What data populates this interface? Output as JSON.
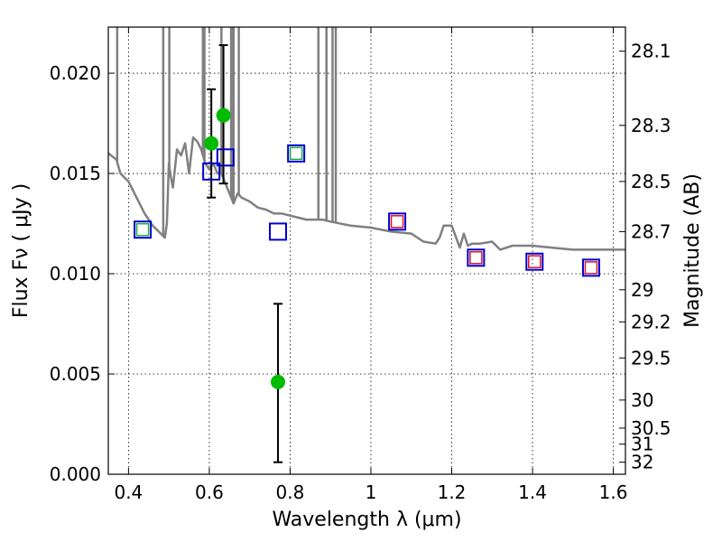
{
  "chart_data": {
    "type": "scatter",
    "xlabel": "Wavelength  λ (μm)",
    "ylabel": "Flux  Fν  ( μJy )",
    "y2label": "Magnitude (AB)",
    "xlim": [
      0.35,
      1.63
    ],
    "ylim": [
      0.0,
      0.0223
    ],
    "grid": true,
    "x_ticks": [
      0.4,
      0.6,
      0.8,
      1.0,
      1.2,
      1.4,
      1.6
    ],
    "x_tick_labels": [
      "0.4",
      "0.6",
      "0.8",
      "1",
      "1.2",
      "1.4",
      "1.6"
    ],
    "y_ticks": [
      0.0,
      0.005,
      0.01,
      0.015,
      0.02
    ],
    "y_tick_labels": [
      "0.000",
      "0.005",
      "0.010",
      "0.015",
      "0.020"
    ],
    "y2_ticks": [
      {
        "label": "28.1",
        "flux": 0.0211
      },
      {
        "label": "28.3",
        "flux": 0.0174
      },
      {
        "label": "28.5",
        "flux": 0.0146
      },
      {
        "label": "28.7",
        "flux": 0.0121
      },
      {
        "label": "29",
        "flux": 0.0092
      },
      {
        "label": "29.2",
        "flux": 0.0076
      },
      {
        "label": "29.5",
        "flux": 0.0058
      },
      {
        "label": "30",
        "flux": 0.0037
      },
      {
        "label": "30.5",
        "flux": 0.0023
      },
      {
        "label": "31",
        "flux": 0.0015
      },
      {
        "label": "32",
        "flux": 0.0006
      }
    ],
    "colors": {
      "model": "#808080",
      "detections": "#00bb00",
      "model_boxes": "#0000cc",
      "green_boxes": "#22aa44",
      "red_boxes": "#dd1133",
      "errorbars": "#000000"
    },
    "series": [
      {
        "kind": "line",
        "x": [
          0.35,
          0.37,
          0.38,
          0.39,
          0.4,
          0.42,
          0.44,
          0.46,
          0.48,
          0.49,
          0.495,
          0.5,
          0.505,
          0.51,
          0.52,
          0.53,
          0.54,
          0.55,
          0.56,
          0.57,
          0.58,
          0.59,
          0.6,
          0.61,
          0.62,
          0.63,
          0.64,
          0.65,
          0.66,
          0.67,
          0.68,
          0.7,
          0.72,
          0.74,
          0.76,
          0.78,
          0.8,
          0.82,
          0.84,
          0.86,
          0.88,
          0.9,
          0.95,
          1.0,
          1.05,
          1.1,
          1.13,
          1.16,
          1.17,
          1.18,
          1.2,
          1.22,
          1.23,
          1.24,
          1.25,
          1.27,
          1.3,
          1.31,
          1.32,
          1.35,
          1.4,
          1.45,
          1.5,
          1.55,
          1.6,
          1.63
        ],
        "y": [
          0.016,
          0.0157,
          0.015,
          0.0148,
          0.0146,
          0.0138,
          0.013,
          0.0124,
          0.012,
          0.0118,
          0.0125,
          0.0155,
          0.0148,
          0.0143,
          0.0162,
          0.0159,
          0.0165,
          0.015,
          0.0168,
          0.0166,
          0.0162,
          0.0155,
          0.0152,
          0.0155,
          0.015,
          0.015,
          0.0145,
          0.014,
          0.0135,
          0.014,
          0.0138,
          0.0136,
          0.0133,
          0.0132,
          0.013,
          0.013,
          0.0129,
          0.0128,
          0.0127,
          0.0127,
          0.0127,
          0.0126,
          0.0124,
          0.0123,
          0.0121,
          0.012,
          0.0116,
          0.0115,
          0.0118,
          0.0124,
          0.0124,
          0.0113,
          0.012,
          0.0114,
          0.0115,
          0.0115,
          0.0116,
          0.0114,
          0.0112,
          0.0114,
          0.0114,
          0.0113,
          0.0112,
          0.0112,
          0.0112,
          0.0112
        ]
      },
      {
        "kind": "emission_lines",
        "x": [
          0.372,
          0.486,
          0.501,
          0.584,
          0.588,
          0.63,
          0.654,
          0.657,
          0.66,
          0.673,
          0.87,
          0.89,
          0.905,
          0.913
        ]
      },
      {
        "kind": "detections",
        "x": [
          0.605,
          0.635,
          0.77
        ],
        "y": [
          0.0165,
          0.0179,
          0.0046
        ],
        "yerr_low": [
          0.0027,
          0.0034,
          0.004
        ],
        "yerr_high": [
          0.0027,
          0.0035,
          0.0039
        ]
      },
      {
        "kind": "model_boxes",
        "x": [
          0.435,
          0.605,
          0.64,
          0.77,
          0.815,
          1.065,
          1.26,
          1.405,
          1.545
        ],
        "y": [
          0.0122,
          0.0151,
          0.0158,
          0.0121,
          0.016,
          0.0126,
          0.0108,
          0.0106,
          0.0103
        ]
      },
      {
        "kind": "green_boxes",
        "x": [
          0.435,
          0.815
        ],
        "y": [
          0.0122,
          0.016
        ]
      },
      {
        "kind": "red_boxes",
        "x": [
          1.065,
          1.26,
          1.405,
          1.545
        ],
        "y": [
          0.0126,
          0.0108,
          0.0106,
          0.0103
        ]
      }
    ]
  }
}
